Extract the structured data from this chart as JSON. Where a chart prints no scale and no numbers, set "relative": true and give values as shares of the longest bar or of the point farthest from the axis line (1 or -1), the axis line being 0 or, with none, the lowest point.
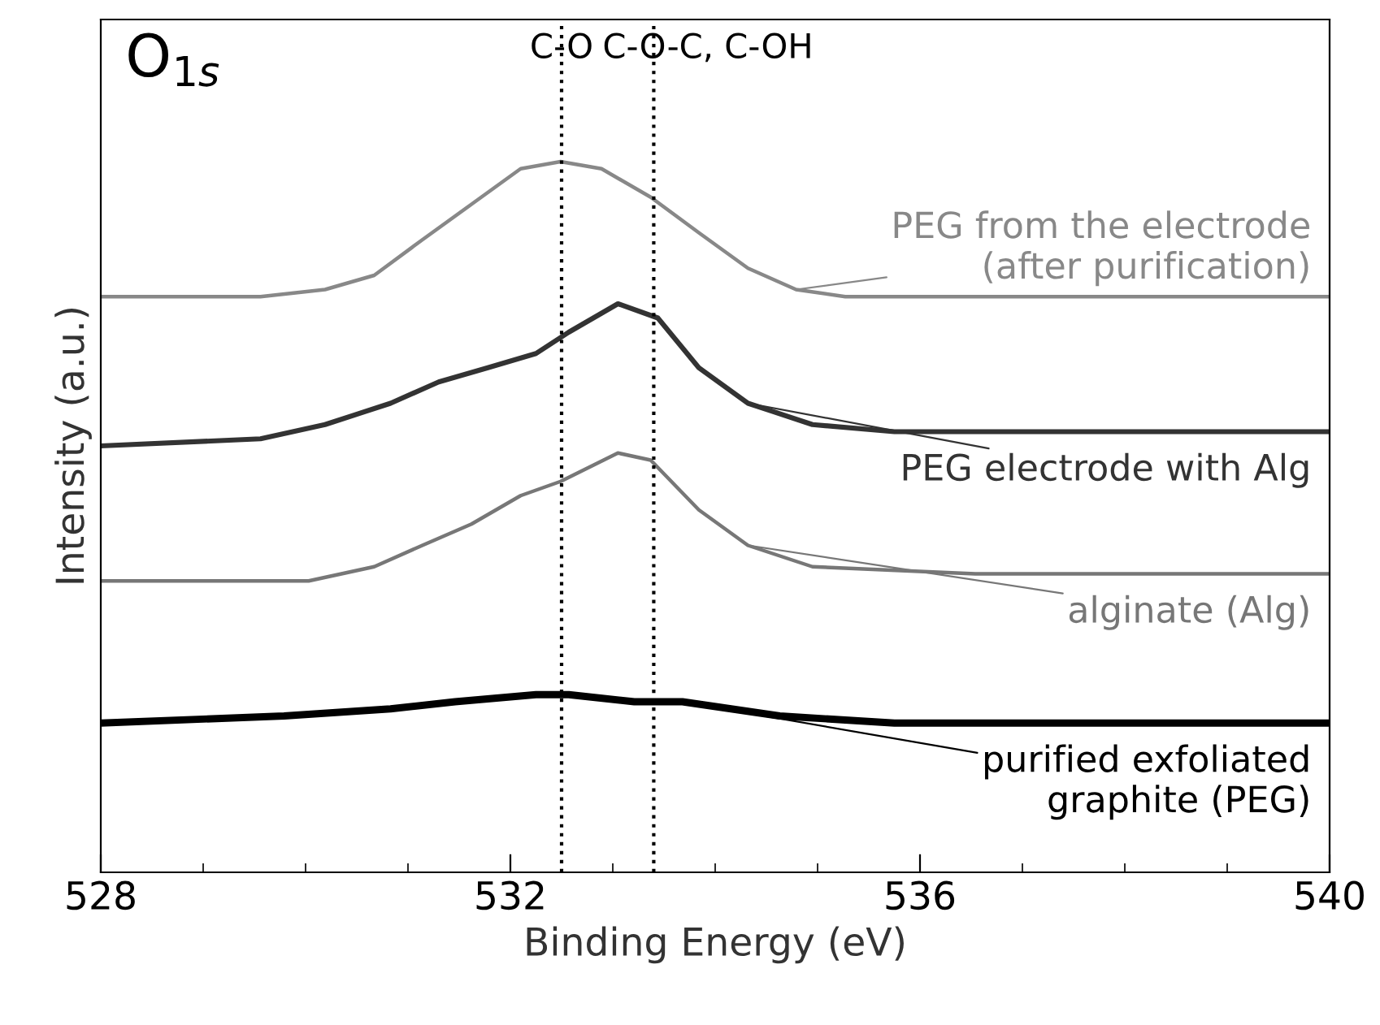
{
  "chart_data": {
    "type": "line",
    "relative": true,
    "xlabel": "Binding Energy (eV)",
    "ylabel": "Intensity (a.u.)",
    "xlim": [
      528,
      540
    ],
    "xticks": [
      528,
      532,
      536,
      540
    ],
    "grid": false,
    "legend": false,
    "annotations": [
      "O$_{1s}$"
    ],
    "ref_lines": [
      {
        "axis": "x",
        "value": 532.5,
        "label": "C-O",
        "line_style": "dotted",
        "color": "#000000"
      },
      {
        "axis": "x",
        "value": 533.4,
        "label": "C-O-C, C-OH",
        "line_style": "dotted",
        "color": "#000000"
      }
    ],
    "series": [
      {
        "name": "PEG from the electrode\n(after purification)",
        "color": "#888888",
        "x": [
          528,
          529.56,
          530.19,
          530.67,
          531.14,
          531.62,
          532.1,
          532.49,
          532.89,
          533.37,
          533.84,
          534.32,
          534.79,
          535.27,
          536.54,
          540
        ],
        "values": [
          0.81,
          0.81,
          0.82,
          0.84,
          0.89,
          0.94,
          0.99,
          1.0,
          0.99,
          0.95,
          0.9,
          0.85,
          0.82,
          0.81,
          0.81,
          0.81
        ]
      },
      {
        "name": "PEG electrode with Alg",
        "color": "#333333",
        "x": [
          528,
          529.56,
          530.19,
          530.83,
          531.3,
          531.78,
          532.25,
          532.57,
          533.05,
          533.44,
          533.84,
          534.32,
          534.95,
          535.75,
          540
        ],
        "values": [
          0.6,
          0.61,
          0.63,
          0.66,
          0.69,
          0.71,
          0.73,
          0.76,
          0.8,
          0.78,
          0.71,
          0.66,
          0.63,
          0.62,
          0.62
        ]
      },
      {
        "name": "alginate (Alg)",
        "color": "#777777",
        "x": [
          528,
          530.03,
          530.67,
          531.14,
          531.62,
          532.1,
          532.49,
          533.05,
          533.37,
          533.84,
          534.32,
          534.95,
          536.54,
          540
        ],
        "values": [
          0.41,
          0.41,
          0.43,
          0.46,
          0.49,
          0.53,
          0.55,
          0.59,
          0.58,
          0.51,
          0.46,
          0.43,
          0.42,
          0.42
        ]
      },
      {
        "name": "purified exfoliated\ngraphite (PEG)",
        "color": "#000000",
        "x": [
          528,
          529.79,
          530.83,
          531.46,
          532.25,
          532.57,
          533.21,
          533.68,
          534.63,
          535.75,
          540
        ],
        "values": [
          0.21,
          0.22,
          0.23,
          0.24,
          0.25,
          0.25,
          0.24,
          0.24,
          0.22,
          0.21,
          0.21
        ]
      }
    ]
  }
}
